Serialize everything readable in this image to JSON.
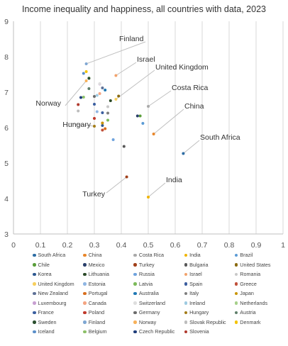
{
  "chart_data": {
    "type": "scatter",
    "title": "Income inequality and happiness, all countries with data, 2023",
    "xlabel": "",
    "ylabel": "",
    "xlim": [
      0,
      1
    ],
    "ylim": [
      3,
      9
    ],
    "x_ticks": [
      "0",
      "0.1",
      "0.2",
      "0.3",
      "0.4",
      "0.5",
      "0.6",
      "0.7",
      "0.8",
      "0.9",
      "1"
    ],
    "y_ticks": [
      "3",
      "4",
      "5",
      "6",
      "7",
      "8",
      "9"
    ],
    "grid": "vertical",
    "legend_position": "bottom",
    "series": [
      {
        "name": "South Africa",
        "color": "#2e6da4",
        "x": 0.63,
        "y": 5.27
      },
      {
        "name": "China",
        "color": "#e8862a",
        "x": 0.52,
        "y": 5.82
      },
      {
        "name": "Costa Rica",
        "color": "#a9a9a9",
        "x": 0.5,
        "y": 6.6
      },
      {
        "name": "India",
        "color": "#f0b400",
        "x": 0.5,
        "y": 4.04
      },
      {
        "name": "Brazil",
        "color": "#5b9bd5",
        "x": 0.48,
        "y": 6.12
      },
      {
        "name": "Chile",
        "color": "#5a9e3a",
        "x": 0.47,
        "y": 6.33
      },
      {
        "name": "Mexico",
        "color": "#2a3f6b",
        "x": 0.46,
        "y": 6.33
      },
      {
        "name": "Turkey",
        "color": "#a1401a",
        "x": 0.42,
        "y": 4.61
      },
      {
        "name": "Bulgaria",
        "color": "#585858",
        "x": 0.41,
        "y": 5.47
      },
      {
        "name": "United States",
        "color": "#8a6a10",
        "x": 0.39,
        "y": 6.89
      },
      {
        "name": "Korea",
        "color": "#2d5890",
        "x": 0.33,
        "y": 6.06
      },
      {
        "name": "Lithuania",
        "color": "#2b4a28",
        "x": 0.36,
        "y": 6.76
      },
      {
        "name": "Russia",
        "color": "#6fa3dd",
        "x": 0.37,
        "y": 5.66
      },
      {
        "name": "Israel",
        "color": "#f2a26b",
        "x": 0.38,
        "y": 7.47
      },
      {
        "name": "Romania",
        "color": "#c8c8c8",
        "x": 0.35,
        "y": 6.59
      },
      {
        "name": "United Kingdom",
        "color": "#f7cf5e",
        "x": 0.38,
        "y": 6.8
      },
      {
        "name": "Estonia",
        "color": "#8fb6e3",
        "x": 0.31,
        "y": 6.45
      },
      {
        "name": "Latvia",
        "color": "#7cba5a",
        "x": 0.35,
        "y": 6.21
      },
      {
        "name": "Spain",
        "color": "#3c5e9e",
        "x": 0.33,
        "y": 6.42
      },
      {
        "name": "Greece",
        "color": "#c0503a",
        "x": 0.33,
        "y": 5.93
      },
      {
        "name": "New Zealand",
        "color": "#5e7196",
        "x": 0.33,
        "y": 7.12
      },
      {
        "name": "Portugal",
        "color": "#d86f1e",
        "x": 0.34,
        "y": 5.97
      },
      {
        "name": "Australia",
        "color": "#1f78b4",
        "x": 0.34,
        "y": 7.06
      },
      {
        "name": "Italy",
        "color": "#7e7e7e",
        "x": 0.35,
        "y": 6.41
      },
      {
        "name": "Japan",
        "color": "#c89400",
        "x": 0.33,
        "y": 6.13
      },
      {
        "name": "Luxembourg",
        "color": "#c8a0d2",
        "x": 0.32,
        "y": 7.23
      },
      {
        "name": "Canada",
        "color": "#f4a582",
        "x": 0.32,
        "y": 6.96
      },
      {
        "name": "Switzerland",
        "color": "#dedede",
        "x": 0.32,
        "y": 7.24
      },
      {
        "name": "Ireland",
        "color": "#9ecae1",
        "x": 0.31,
        "y": 6.91
      },
      {
        "name": "Netherlands",
        "color": "#a6d08a",
        "x": 0.28,
        "y": 7.4
      },
      {
        "name": "France",
        "color": "#3a5fa0",
        "x": 0.3,
        "y": 6.66
      },
      {
        "name": "Poland",
        "color": "#c0392b",
        "x": 0.3,
        "y": 6.26
      },
      {
        "name": "Germany",
        "color": "#6b6b6b",
        "x": 0.3,
        "y": 6.88
      },
      {
        "name": "Hungary",
        "color": "#a37c18",
        "x": 0.3,
        "y": 6.04
      },
      {
        "name": "Austria",
        "color": "#5f7f6a",
        "x": 0.28,
        "y": 7.1
      },
      {
        "name": "Sweden",
        "color": "#2b4f2e",
        "x": 0.28,
        "y": 7.39
      },
      {
        "name": "Finland",
        "color": "#7fa7d3",
        "x": 0.27,
        "y": 7.8
      },
      {
        "name": "Norway",
        "color": "#f7b15a",
        "x": 0.27,
        "y": 7.32
      },
      {
        "name": "Slovak Republic",
        "color": "#bdbdbd",
        "x": 0.24,
        "y": 6.47
      },
      {
        "name": "Denmark",
        "color": "#f3c300",
        "x": 0.27,
        "y": 7.58
      },
      {
        "name": "Iceland",
        "color": "#5b8fc9",
        "x": 0.26,
        "y": 7.53
      },
      {
        "name": "Belgium",
        "color": "#8cc068",
        "x": 0.26,
        "y": 6.86
      },
      {
        "name": "Czech Republic",
        "color": "#1f3d7a",
        "x": 0.25,
        "y": 6.85
      },
      {
        "name": "Slovenia",
        "color": "#b03a2e",
        "x": 0.24,
        "y": 6.65
      }
    ],
    "annotations": [
      {
        "text": "Finland",
        "target": "Finland"
      },
      {
        "text": "Israel",
        "target": "Israel"
      },
      {
        "text": "United Kingdom",
        "target": "United Kingdom"
      },
      {
        "text": "Costa Rica",
        "target": "Costa Rica"
      },
      {
        "text": "Norway",
        "target": "Norway"
      },
      {
        "text": "China",
        "target": "China"
      },
      {
        "text": "Hungary",
        "target": "Hungary"
      },
      {
        "text": "South Africa",
        "target": "South Africa"
      },
      {
        "text": "India",
        "target": "India"
      },
      {
        "text": "Turkey",
        "target": "Turkey"
      }
    ]
  }
}
